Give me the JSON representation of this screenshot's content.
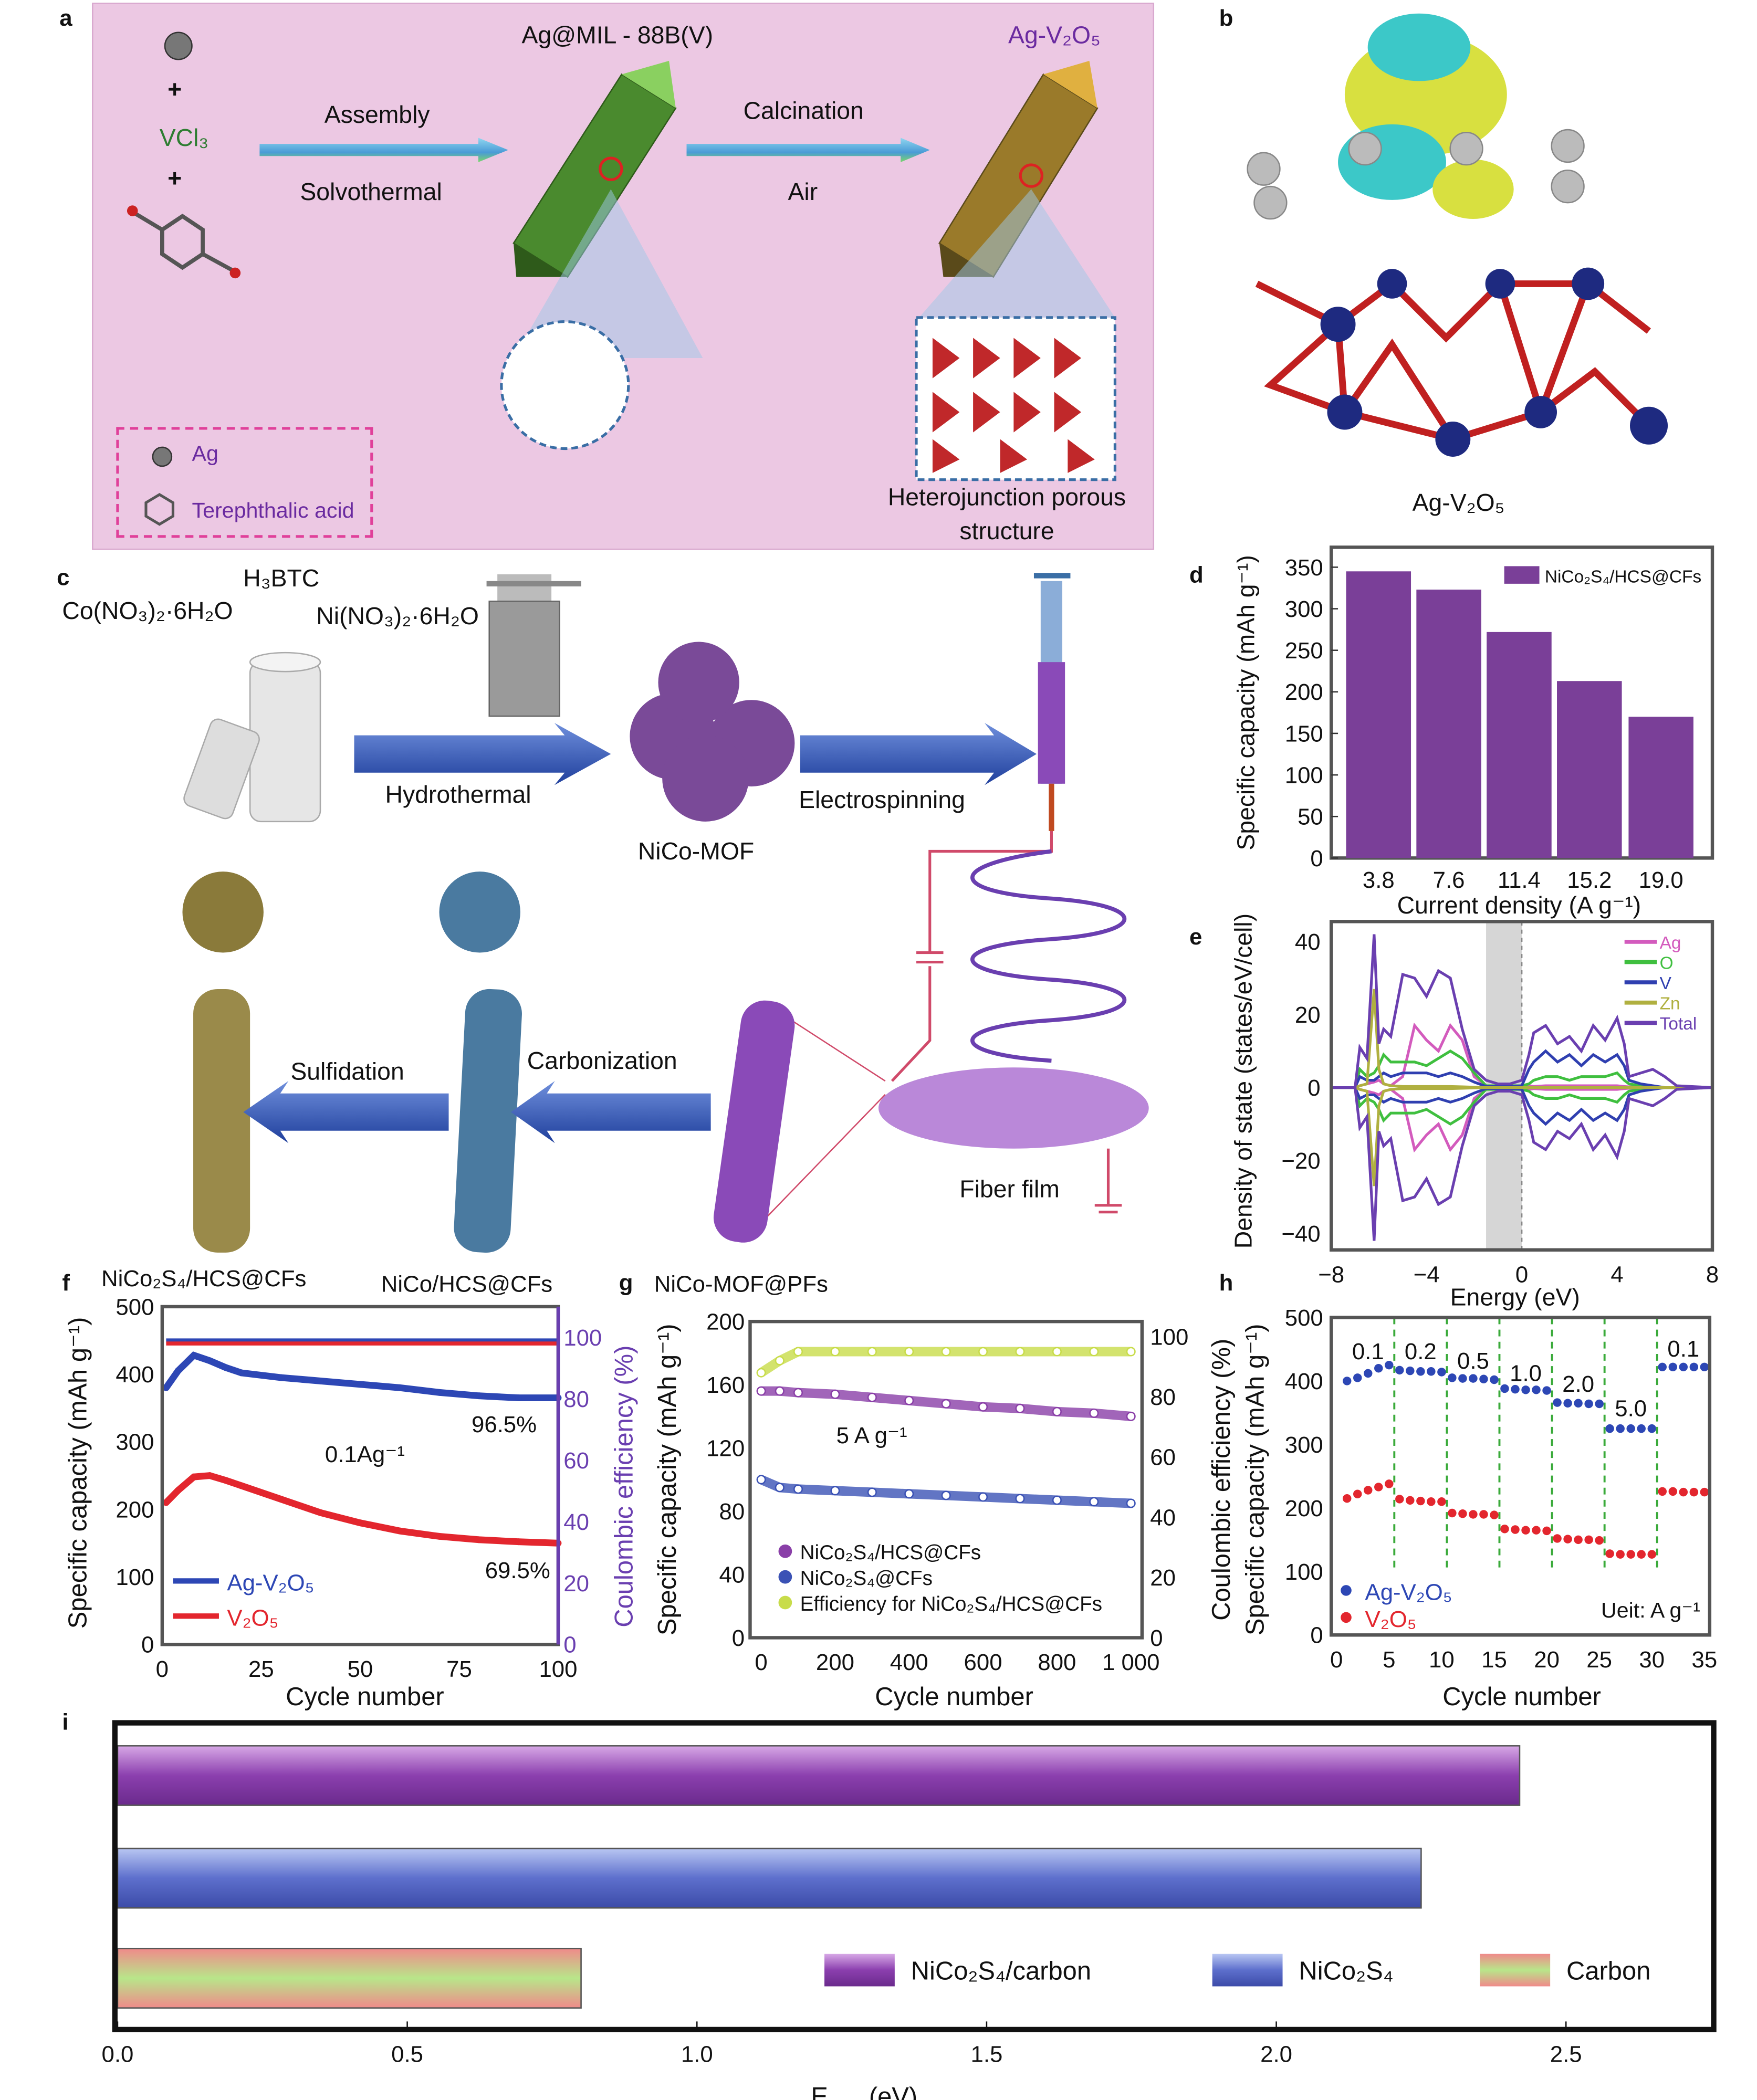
{
  "panel_letters": [
    "a",
    "b",
    "c",
    "d",
    "e",
    "f",
    "g",
    "h",
    "i"
  ],
  "panel_a": {
    "reagents": {
      "vcl3": "VCl₃",
      "plus": "+"
    },
    "intermediate": "Ag@MIL - 88B(V)",
    "product": "Ag-V₂O₅",
    "step1_top": "Assembly",
    "step1_bottom": "Solvothermal",
    "step2_top": "Calcination",
    "step2_bottom": "Air",
    "structure_caption": "Heterojunction porous structure",
    "legend": {
      "ag": "Ag",
      "ligand": "Terephthalic acid"
    }
  },
  "panel_b": {
    "caption": "Ag-V₂O₅"
  },
  "panel_c": {
    "h3btc": "H₃BTC",
    "co_salt": "Co(NO₃)₂·6H₂O",
    "ni_salt": "Ni(NO₃)₂·6H₂O",
    "hydrothermal": "Hydrothermal",
    "mof": "NiCo-MOF",
    "electrospinning": "Electrospinning",
    "sulfidation": "Sulfidation",
    "carbonization": "Carbonization",
    "fiber_film": "Fiber film"
  },
  "chart_data": [
    {
      "id": "d",
      "type": "bar",
      "categories": [
        "3.8",
        "7.6",
        "11.4",
        "15.2",
        "19.0"
      ],
      "values": [
        345,
        323,
        272,
        213,
        170
      ],
      "series_name": "NiCo₂S₄/HCS@CFs",
      "xlabel": "Current density (A g⁻¹)",
      "ylabel": "Specific capacity (mAh g⁻¹)",
      "ylim": [
        0,
        374
      ],
      "yticks": [
        0,
        50,
        100,
        150,
        200,
        250,
        300,
        350
      ],
      "legend": "top-right",
      "color": "#7a3f98"
    },
    {
      "id": "e",
      "type": "line",
      "xlabel": "Energy (eV)",
      "ylabel": "Density of state (states/eV/cell)",
      "xlim": [
        -8,
        8
      ],
      "ylim": [
        -44.5,
        45.5
      ],
      "xticks": [
        "−8",
        "−4",
        "0",
        "4",
        "8"
      ],
      "xtick_values": [
        -8,
        -4,
        0,
        4,
        8
      ],
      "yticks": [
        "−40",
        "−20",
        "0",
        "20",
        "40"
      ],
      "ytick_values": [
        -40,
        -20,
        0,
        20,
        40
      ],
      "band_gap_shade": [
        -1.5,
        0
      ],
      "legend": "top-right",
      "x": [
        -8,
        -7,
        -6.8,
        -6.5,
        -6.2,
        -6,
        -5.8,
        -5.5,
        -5,
        -4.5,
        -4,
        -3.5,
        -3,
        -2.5,
        -2,
        -1.5,
        -1,
        -0.5,
        0,
        0.3,
        0.5,
        1,
        1.5,
        2,
        2.5,
        3,
        3.5,
        4,
        4.3,
        4.5,
        5,
        5.5,
        6,
        6.5,
        8
      ],
      "series": [
        {
          "name": "Ag",
          "color": "#d35bbd",
          "up": [
            0,
            0,
            0.5,
            1,
            1.5,
            2,
            1,
            0.5,
            3,
            17,
            13,
            10,
            17,
            13,
            3,
            0.5,
            0.3,
            0.3,
            0.3,
            0.5,
            0.3,
            0.5,
            0.5,
            0.5,
            0.5,
            0.5,
            0.5,
            0.5,
            0.3,
            0.2,
            0.1,
            0,
            0,
            0,
            0
          ]
        },
        {
          "name": "O",
          "color": "#3fbf3f",
          "up": [
            0,
            0,
            5,
            3,
            4,
            6,
            9,
            7,
            7,
            7,
            6,
            8,
            10,
            8,
            4,
            0.5,
            0.5,
            0.5,
            0.5,
            1,
            2,
            3,
            3,
            2,
            3,
            3,
            3,
            4,
            2,
            1,
            0.5,
            0.3,
            0,
            0,
            0
          ]
        },
        {
          "name": "V",
          "color": "#2f3fb0",
          "up": [
            0,
            0,
            3,
            2,
            2,
            3,
            4,
            3,
            4,
            4,
            4,
            3,
            4,
            3,
            1.5,
            0.3,
            0.3,
            0.3,
            0.5,
            5,
            7,
            10,
            7,
            9,
            6,
            9,
            7,
            9,
            6,
            2,
            1,
            0.5,
            0,
            0,
            0
          ]
        },
        {
          "name": "Zn",
          "color": "#b0b040",
          "up": [
            0,
            0,
            0.5,
            1,
            27,
            5,
            1,
            0.5,
            0.3,
            0.3,
            0.3,
            0.3,
            0.3,
            0.2,
            0.1,
            0,
            0,
            0,
            0,
            0,
            0,
            0,
            0,
            0,
            0,
            0,
            0,
            0,
            0,
            0,
            0,
            0,
            0,
            0,
            0
          ]
        },
        {
          "name": "Total",
          "color": "#6a3fb0",
          "up": [
            0,
            0,
            11,
            8,
            42,
            12,
            16,
            14,
            31,
            30,
            25,
            32,
            30,
            16,
            5,
            2,
            1,
            1,
            2,
            9,
            15,
            17,
            12,
            14,
            10,
            17,
            13,
            19,
            12,
            3,
            4,
            5,
            3,
            0.5,
            0
          ]
        }
      ]
    },
    {
      "id": "f",
      "type": "scatter",
      "annotation_top_left": "NiCo₂S₄/HCS@CFs",
      "annotation_top_right": "NiCo/HCS@CFs",
      "xlabel": "Cycle number",
      "ylabel": "Specific capacity (mAh g⁻¹)",
      "ylabel_right": "Coulombic efficiency (%)",
      "xlim": [
        0,
        100
      ],
      "ylim": [
        0,
        500
      ],
      "ylim_right": [
        0,
        110
      ],
      "xticks": [
        0,
        25,
        50,
        75,
        100
      ],
      "yticks": [
        0,
        100,
        200,
        300,
        400,
        500
      ],
      "yticks_right": [
        0,
        20,
        40,
        60,
        80,
        100
      ],
      "labels": {
        "rate": "0.1Ag⁻¹",
        "retention_ag": "96.5%",
        "retention_v": "69.5%"
      },
      "legend": "bottom-left",
      "x": [
        1,
        4,
        8,
        12,
        16,
        20,
        30,
        40,
        50,
        60,
        70,
        80,
        90,
        100
      ],
      "series": [
        {
          "name": "Ag-V₂O₅",
          "color": "#2d47b5",
          "values": [
            380,
            405,
            428,
            420,
            410,
            402,
            395,
            390,
            385,
            380,
            373,
            368,
            365,
            365
          ],
          "efficiency": [
            99,
            99,
            99,
            99,
            99,
            99,
            99,
            99,
            99,
            99,
            99,
            99,
            99,
            99
          ]
        },
        {
          "name": "V₂O₅",
          "color": "#e3262e",
          "values": [
            210,
            228,
            248,
            250,
            243,
            235,
            215,
            195,
            180,
            168,
            160,
            155,
            152,
            150
          ],
          "efficiency": [
            98,
            98,
            98,
            98,
            98,
            98,
            98,
            98,
            98,
            98,
            98,
            98,
            98,
            98
          ]
        }
      ]
    },
    {
      "id": "g",
      "type": "scatter",
      "annotation_title": "NiCo-MOF@PFs",
      "xlabel": "Cycle number",
      "ylabel": "Specific capacity (mAh g⁻¹)",
      "ylabel_right": "Coulombic efficiency (%)",
      "xlim": [
        -30,
        1030
      ],
      "ylim": [
        0,
        200
      ],
      "ylim_right": [
        0,
        105
      ],
      "xticks": [
        "0",
        "200",
        "400",
        "600",
        "800",
        "1 000"
      ],
      "xtick_values": [
        0,
        200,
        400,
        600,
        800,
        1000
      ],
      "yticks": [
        0,
        40,
        80,
        120,
        160,
        200
      ],
      "yticks_right": [
        0,
        20,
        40,
        60,
        80,
        100
      ],
      "labels": {
        "rate": "5 A g⁻¹"
      },
      "legend": "bottom-left",
      "x": [
        0,
        50,
        100,
        200,
        300,
        400,
        500,
        600,
        700,
        800,
        900,
        1000
      ],
      "series": [
        {
          "name": "NiCo₂S₄/HCS@CFs",
          "color": "#8a3fa8",
          "axis": "left",
          "values": [
            156,
            156,
            155,
            154,
            152,
            150,
            148,
            146,
            145,
            143,
            142,
            140
          ]
        },
        {
          "name": "NiCo₂S₄@CFs",
          "color": "#3b52b5",
          "axis": "left",
          "values": [
            100,
            95,
            94,
            93,
            92,
            91,
            90,
            89,
            88,
            87,
            86,
            85
          ]
        },
        {
          "name": "Efficiency for NiCo₂S₄/HCS@CFs",
          "color": "#c8dc4a",
          "axis": "right",
          "values": [
            88,
            92,
            95,
            95,
            95,
            95,
            95,
            95,
            95,
            95,
            95,
            95
          ]
        }
      ]
    },
    {
      "id": "h",
      "type": "scatter",
      "xlabel": "Cycle number",
      "ylabel": "Specific capacity (mAh g⁻¹)",
      "ylabel_outer": "Coulombic efficiency (%)",
      "xlim": [
        -0.5,
        35.5
      ],
      "ylim": [
        0,
        500
      ],
      "xticks": [
        0,
        5,
        10,
        15,
        20,
        25,
        30,
        35
      ],
      "yticks": [
        0,
        100,
        200,
        300,
        400,
        500
      ],
      "dividers": [
        5.5,
        10.5,
        15.5,
        20.5,
        25.5,
        30.5
      ],
      "rate_labels": [
        "0.1",
        "0.2",
        "0.5",
        "1.0",
        "2.0",
        "5.0",
        "0.1"
      ],
      "unit_label": "Ueit: A g⁻¹",
      "legend": "bottom-left",
      "x": [
        1,
        2,
        3,
        4,
        5,
        6,
        7,
        8,
        9,
        10,
        11,
        12,
        13,
        14,
        15,
        16,
        17,
        18,
        19,
        20,
        21,
        22,
        23,
        24,
        25,
        26,
        27,
        28,
        29,
        30,
        31,
        32,
        33,
        34,
        35
      ],
      "series": [
        {
          "name": "Ag-V₂O₅",
          "color": "#2d47b5",
          "values": [
            400,
            405,
            412,
            420,
            425,
            417,
            416,
            415,
            415,
            414,
            405,
            404,
            404,
            403,
            402,
            388,
            387,
            386,
            386,
            385,
            366,
            365,
            365,
            364,
            364,
            325,
            325,
            325,
            325,
            325,
            422,
            422,
            422,
            422,
            422
          ]
        },
        {
          "name": "V₂O₅",
          "color": "#e3262e",
          "values": [
            215,
            222,
            228,
            233,
            238,
            214,
            212,
            211,
            210,
            210,
            192,
            191,
            190,
            190,
            189,
            167,
            166,
            165,
            165,
            164,
            152,
            151,
            150,
            150,
            149,
            128,
            127,
            127,
            127,
            127,
            226,
            226,
            225,
            225,
            225
          ]
        }
      ]
    },
    {
      "id": "i",
      "type": "bar",
      "orientation": "horizontal",
      "xlabel": "E_OH− (eV)",
      "xlabel_main": "E",
      "xlabel_sub": "OH−",
      "xlabel_unit": " (eV)",
      "xlim": [
        0,
        2.755
      ],
      "xticks": [
        "0.0",
        "0.5",
        "1.0",
        "1.5",
        "2.0",
        "2.5"
      ],
      "xtick_values": [
        0,
        0.5,
        1,
        1.5,
        2,
        2.5
      ],
      "legend": "bottom-right",
      "series": [
        {
          "name": "NiCo₂S₄/carbon",
          "value": 2.42,
          "colors": [
            "#d7a8e6",
            "#8b3fae",
            "#6a2a8c"
          ]
        },
        {
          "name": "NiCo₂S₄",
          "value": 2.25,
          "colors": [
            "#b8c6f2",
            "#5d6fcc",
            "#3c4ba8"
          ]
        },
        {
          "name": "Carbon",
          "value": 0.8,
          "colors": [
            "#f08a8a",
            "#b8e68a",
            "#f08a8a"
          ]
        }
      ]
    }
  ]
}
